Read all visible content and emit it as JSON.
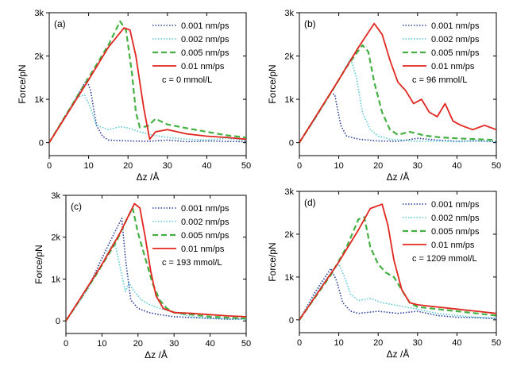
{
  "chart_data": [
    {
      "type": "line",
      "panel": "(a)",
      "xlabel": "Δz /Å",
      "ylabel": "Force/pN",
      "xlim": [
        0,
        50
      ],
      "ylim": [
        -300,
        3000
      ],
      "xticks": [
        "0",
        "10",
        "20",
        "30",
        "40",
        "50"
      ],
      "yticks": [
        "0",
        "1k",
        "2k",
        "3k"
      ],
      "annotation": "c = 0 mmol/L",
      "series": [
        {
          "name": "0.001 nm/ps",
          "color": "#2b3f99",
          "style": "dotted",
          "x": [
            0,
            5,
            9.5,
            10.5,
            12,
            13.5,
            15,
            20,
            25,
            30,
            35,
            40,
            45,
            50
          ],
          "y": [
            0,
            760,
            1450,
            1200,
            400,
            150,
            60,
            40,
            30,
            60,
            20,
            40,
            30,
            20
          ]
        },
        {
          "name": "0.002 nm/ps",
          "color": "#5bc8d6",
          "style": "dotted",
          "x": [
            0,
            4,
            7,
            9,
            10.5,
            12,
            15,
            18,
            20,
            23,
            26,
            30,
            35,
            40,
            45,
            50
          ],
          "y": [
            0,
            600,
            1050,
            1100,
            800,
            400,
            300,
            370,
            340,
            250,
            180,
            120,
            80,
            60,
            100,
            50
          ]
        },
        {
          "name": "0.005 nm/ps",
          "color": "#44b043",
          "style": "dashed",
          "x": [
            0,
            10,
            15,
            18,
            19.5,
            21,
            22,
            23,
            25,
            27,
            30,
            35,
            40,
            45,
            50
          ],
          "y": [
            0,
            1500,
            2250,
            2800,
            2600,
            1600,
            700,
            350,
            380,
            550,
            420,
            330,
            250,
            170,
            120
          ]
        },
        {
          "name": "0.01 nm/ps",
          "color": "#e0261f",
          "style": "solid",
          "x": [
            0,
            10,
            15,
            19,
            20.5,
            22,
            24,
            25.5,
            27,
            30,
            35,
            40,
            45,
            50
          ],
          "y": [
            0,
            1450,
            2200,
            2650,
            2600,
            2000,
            800,
            80,
            250,
            300,
            200,
            150,
            120,
            80
          ]
        }
      ]
    },
    {
      "type": "line",
      "panel": "(b)",
      "xlabel": "Δz /Å",
      "ylabel": "Force/pN",
      "xlim": [
        0,
        50
      ],
      "ylim": [
        -300,
        3000
      ],
      "xticks": [
        "0",
        "10",
        "20",
        "30",
        "40",
        "50"
      ],
      "yticks": [
        "0",
        "1k",
        "2k",
        "3k"
      ],
      "annotation": "c = 96 mmol/L",
      "series": [
        {
          "name": "0.001 nm/ps",
          "color": "#2b3f99",
          "style": "dotted",
          "x": [
            0,
            4,
            8,
            9,
            10.5,
            12,
            15,
            20,
            25,
            30,
            35,
            40,
            45,
            50
          ],
          "y": [
            0,
            550,
            1150,
            1100,
            400,
            150,
            80,
            40,
            30,
            100,
            60,
            30,
            40,
            20
          ]
        },
        {
          "name": "0.002 nm/ps",
          "color": "#5bc8d6",
          "style": "dotted",
          "x": [
            0,
            6,
            10,
            13,
            14.5,
            16,
            18,
            20,
            23,
            26,
            30,
            35,
            40,
            45,
            50
          ],
          "y": [
            0,
            850,
            1450,
            1950,
            1500,
            700,
            300,
            150,
            80,
            60,
            30,
            40,
            20,
            50,
            20
          ]
        },
        {
          "name": "0.005 nm/ps",
          "color": "#44b043",
          "style": "dashed",
          "x": [
            0,
            8,
            12,
            16,
            17.5,
            19,
            21,
            23,
            25,
            28,
            32,
            36,
            40,
            45,
            50
          ],
          "y": [
            0,
            1150,
            1750,
            2250,
            2100,
            1400,
            700,
            300,
            180,
            250,
            160,
            120,
            100,
            80,
            60
          ]
        },
        {
          "name": "0.01 nm/ps",
          "color": "#e0261f",
          "style": "solid",
          "x": [
            0,
            10,
            15,
            19,
            21,
            23,
            25,
            27,
            29,
            31,
            33,
            35,
            37,
            39,
            41,
            44,
            47,
            50
          ],
          "y": [
            0,
            1450,
            2200,
            2750,
            2500,
            1900,
            1400,
            1200,
            900,
            1000,
            700,
            600,
            900,
            500,
            400,
            300,
            400,
            300
          ]
        }
      ]
    },
    {
      "type": "line",
      "panel": "(c)",
      "xlabel": "Δz /Å",
      "ylabel": "Force/pN",
      "xlim": [
        0,
        50
      ],
      "ylim": [
        -300,
        3000
      ],
      "xticks": [
        "0",
        "10",
        "20",
        "30",
        "40",
        "50"
      ],
      "yticks": [
        "0",
        "1k",
        "2k",
        "3k"
      ],
      "annotation": "c = 193 mmol/L",
      "series": [
        {
          "name": "0.001 nm/ps",
          "color": "#2b3f99",
          "style": "dotted",
          "x": [
            0,
            6,
            10,
            14,
            15.5,
            16.5,
            18,
            20,
            23,
            26,
            30,
            35,
            40,
            45,
            50
          ],
          "y": [
            0,
            750,
            1500,
            2200,
            2450,
            1500,
            500,
            300,
            200,
            150,
            100,
            80,
            60,
            40,
            50
          ]
        },
        {
          "name": "0.002 nm/ps",
          "color": "#5bc8d6",
          "style": "dotted",
          "x": [
            0,
            6,
            10,
            12,
            13.5,
            15,
            16.5,
            17.5,
            19,
            21,
            23,
            26,
            30,
            35,
            40,
            45,
            50
          ],
          "y": [
            0,
            750,
            1350,
            1700,
            1900,
            1300,
            700,
            900,
            700,
            500,
            400,
            300,
            200,
            100,
            60,
            50,
            40
          ]
        },
        {
          "name": "0.005 nm/ps",
          "color": "#44b043",
          "style": "dashed",
          "x": [
            0,
            8,
            14,
            17,
            18.5,
            20,
            22,
            24,
            26,
            28,
            30,
            35,
            40,
            45,
            50
          ],
          "y": [
            0,
            1050,
            1900,
            2450,
            2700,
            2100,
            1500,
            900,
            500,
            300,
            200,
            150,
            100,
            80,
            60
          ]
        },
        {
          "name": "0.01 nm/ps",
          "color": "#e0261f",
          "style": "solid",
          "x": [
            0,
            10,
            15,
            19,
            20.5,
            22,
            23.5,
            25,
            27,
            30,
            35,
            40,
            45,
            50
          ],
          "y": [
            0,
            1350,
            2100,
            2800,
            2700,
            2000,
            1200,
            600,
            300,
            200,
            180,
            150,
            120,
            100
          ]
        }
      ]
    },
    {
      "type": "line",
      "panel": "(d)",
      "xlabel": "Δz /Å",
      "ylabel": "Force/pN",
      "xlim": [
        0,
        50
      ],
      "ylim": [
        -300,
        3000
      ],
      "xticks": [
        "0",
        "10",
        "20",
        "30",
        "40",
        "50"
      ],
      "yticks": [
        "0",
        "1k",
        "2k",
        "3k"
      ],
      "annotation": "c = 1209 mmol/L",
      "series": [
        {
          "name": "0.001 nm/ps",
          "color": "#2b3f99",
          "style": "dotted",
          "x": [
            0,
            4,
            8,
            9.5,
            11,
            13,
            15,
            20,
            25,
            30,
            35,
            40,
            45,
            50
          ],
          "y": [
            0,
            650,
            1200,
            900,
            400,
            200,
            150,
            200,
            150,
            200,
            100,
            60,
            50,
            30
          ]
        },
        {
          "name": "0.002 nm/ps",
          "color": "#5bc8d6",
          "style": "dotted",
          "x": [
            0,
            4,
            8,
            10,
            11.5,
            13,
            15,
            18,
            21,
            24,
            27,
            30,
            35,
            40,
            45,
            50
          ],
          "y": [
            0,
            600,
            1100,
            1300,
            1000,
            600,
            450,
            500,
            400,
            350,
            300,
            250,
            150,
            100,
            60,
            40
          ]
        },
        {
          "name": "0.005 nm/ps",
          "color": "#44b043",
          "style": "dashed",
          "x": [
            0,
            8,
            12,
            15,
            16.5,
            18,
            20,
            22,
            24,
            26,
            28,
            30,
            35,
            40,
            45,
            50
          ],
          "y": [
            0,
            1050,
            1700,
            2350,
            2400,
            1700,
            1300,
            1100,
            1000,
            700,
            400,
            300,
            250,
            200,
            150,
            100
          ]
        },
        {
          "name": "0.01 nm/ps",
          "color": "#e0261f",
          "style": "solid",
          "x": [
            0,
            10,
            15,
            18,
            21,
            22.5,
            24,
            26,
            28,
            30,
            35,
            40,
            45,
            50
          ],
          "y": [
            0,
            1350,
            2100,
            2600,
            2700,
            2200,
            1400,
            700,
            400,
            350,
            300,
            250,
            200,
            150
          ]
        }
      ]
    }
  ]
}
